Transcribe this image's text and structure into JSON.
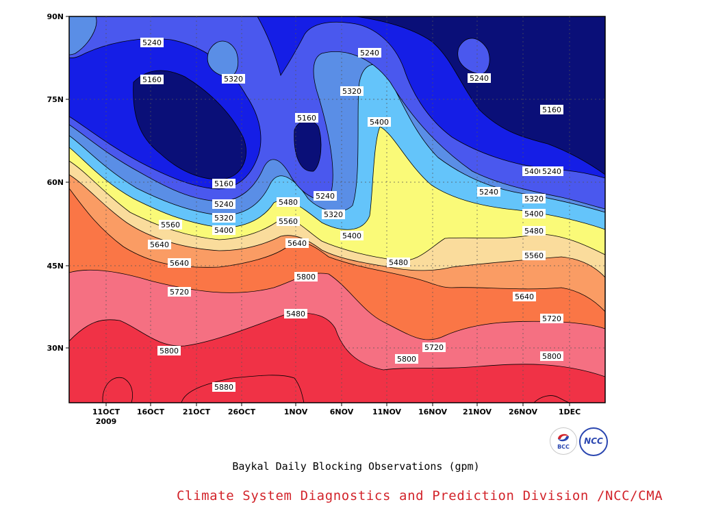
{
  "chart_data": {
    "type": "contour",
    "title": "Baykal Daily Blocking Observations (gpm)",
    "x_ticks": [
      "11OCT",
      "16OCT",
      "21OCT",
      "26OCT",
      "1NOV",
      "6NOV",
      "11NOV",
      "16NOV",
      "21NOV",
      "26NOV",
      "1DEC"
    ],
    "x_year_label": "2009",
    "y_ticks": [
      "30N",
      "45N",
      "60N",
      "75N",
      "90N"
    ],
    "y_range": [
      20,
      90
    ],
    "contour_levels": [
      5160,
      5240,
      5320,
      5400,
      5480,
      5560,
      5640,
      5720,
      5800,
      5880
    ],
    "colors": {
      "below_5160": "#0a0f78",
      "5160_5240": "#151ee6",
      "5240_5320": "#4a58ee",
      "5320_5400": "#5a8ee6",
      "5400_5480": "#64c4fa",
      "5480_5560": "#fafa78",
      "5560_5640": "#fadc9c",
      "5640_5720": "#fa9c64",
      "5720_5800": "#fa7646",
      "5800_5880": "#f57082",
      "above_5880": "#f03246"
    },
    "contour_labels": [
      {
        "text": "5240"
      },
      {
        "text": "5160"
      },
      {
        "text": "5320"
      },
      {
        "text": "5160"
      },
      {
        "text": "5240"
      },
      {
        "text": "5320"
      },
      {
        "text": "5400"
      },
      {
        "text": "5240"
      },
      {
        "text": "5160"
      },
      {
        "text": "5400"
      },
      {
        "text": "5480"
      },
      {
        "text": "5560"
      },
      {
        "text": "5640"
      },
      {
        "text": "5160"
      },
      {
        "text": "5240"
      },
      {
        "text": "5320"
      },
      {
        "text": "5400"
      },
      {
        "text": "5480"
      },
      {
        "text": "5560"
      },
      {
        "text": "5640"
      },
      {
        "text": "5240"
      },
      {
        "text": "5320"
      },
      {
        "text": "5400"
      },
      {
        "text": "5480"
      },
      {
        "text": "5560"
      },
      {
        "text": "5640"
      },
      {
        "text": "5720"
      },
      {
        "text": "5800"
      },
      {
        "text": "5240"
      },
      {
        "text": "5320"
      },
      {
        "text": "5400"
      },
      {
        "text": "5480"
      },
      {
        "text": "5240"
      },
      {
        "text": "5160"
      },
      {
        "text": "5320"
      },
      {
        "text": "5400"
      },
      {
        "text": "5480"
      },
      {
        "text": "5560"
      },
      {
        "text": "5640"
      },
      {
        "text": "5720"
      },
      {
        "text": "5720"
      },
      {
        "text": "5800"
      },
      {
        "text": "5800"
      },
      {
        "text": "5880"
      },
      {
        "text": "5800"
      }
    ]
  },
  "footer": "Climate System Diagnostics and Prediction Division /NCC/CMA",
  "logos": {
    "bcc": "BCC",
    "ncc": "NCC"
  }
}
